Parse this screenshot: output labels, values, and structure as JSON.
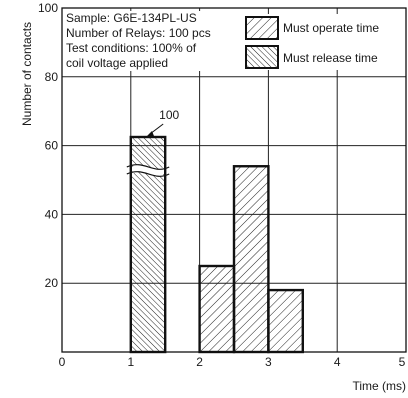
{
  "chart_data": {
    "type": "bar",
    "xlabel": "Time (ms)",
    "ylabel": "Number of contacts",
    "xlim": [
      0,
      5
    ],
    "ylim": [
      0,
      100
    ],
    "x_ticks": [
      "0",
      "1",
      "2",
      "3",
      "4",
      "5"
    ],
    "y_ticks": [
      "20",
      "40",
      "60",
      "80",
      "100"
    ],
    "grid": true,
    "legend_position": "top-right",
    "annotation_lines": [
      "Sample: G6E-134PL-US",
      "Number of Relays: 100 pcs",
      "Test conditions: 100% of",
      "coil voltage applied"
    ],
    "series": [
      {
        "name": "Must operate time",
        "bins": [
          {
            "x_start": 2.0,
            "x_end": 2.5,
            "value": 25
          },
          {
            "x_start": 2.5,
            "x_end": 3.0,
            "value": 54
          },
          {
            "x_start": 3.0,
            "x_end": 3.5,
            "value": 18
          }
        ]
      },
      {
        "name": "Must release time",
        "bins": [
          {
            "x_start": 1.0,
            "x_end": 1.5,
            "value": 100,
            "broken_axis": true,
            "label": "100"
          }
        ]
      }
    ],
    "colors": {
      "bar_outline": "#111111",
      "hatch": "#222222",
      "grid": "#222222",
      "background": "#ffffff"
    }
  }
}
